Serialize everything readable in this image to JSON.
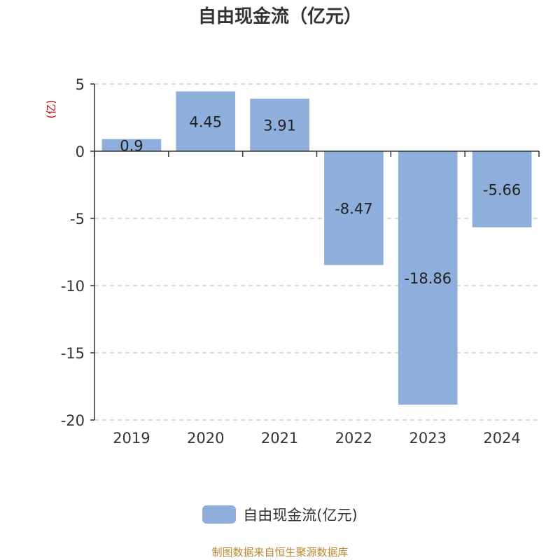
{
  "chart_data": {
    "type": "bar",
    "title": "自由现金流（亿元）",
    "ylabel": "(亿)",
    "categories": [
      "2019",
      "2020",
      "2021",
      "2022",
      "2023",
      "2024"
    ],
    "series": [
      {
        "name": "自由现金流(亿元)",
        "values": [
          0.9,
          4.45,
          3.91,
          -8.47,
          -18.86,
          -5.66
        ]
      }
    ],
    "data_labels": [
      "0.9",
      "4.45",
      "3.91",
      "-8.47",
      "-18.86",
      "-5.66"
    ],
    "ylim": [
      -20,
      5
    ],
    "yticks": [
      5,
      0,
      -5,
      -10,
      -15,
      -20
    ],
    "ytick_labels": [
      "5",
      "0",
      "-5",
      "-10",
      "-15",
      "-20"
    ],
    "grid": true,
    "legend_position": "bottom-center",
    "bar_color": "#8eaedb",
    "ylabel_color": "#cc0000"
  },
  "legend": {
    "label": "自由现金流(亿元)"
  },
  "source": "制图数据来自恒生聚源数据库"
}
